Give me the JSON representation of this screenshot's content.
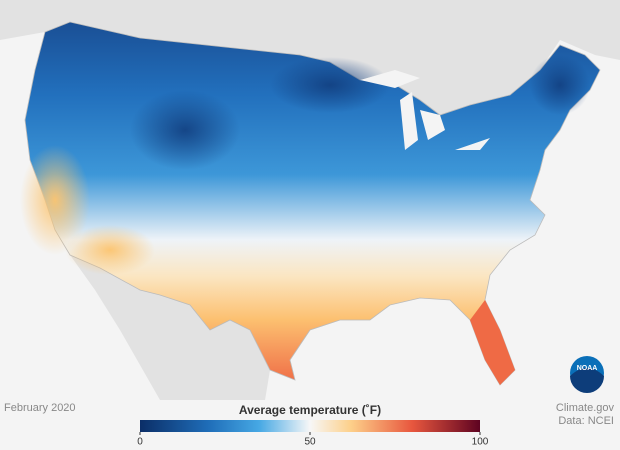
{
  "date": "February 2020",
  "legend": {
    "title": "Average temperature (˚F)",
    "min": 0,
    "max": 100,
    "ticks": [
      0,
      50,
      100
    ]
  },
  "credit": {
    "source": "Climate.gov",
    "data": "Data: NCEI"
  },
  "logo": "NOAA"
}
